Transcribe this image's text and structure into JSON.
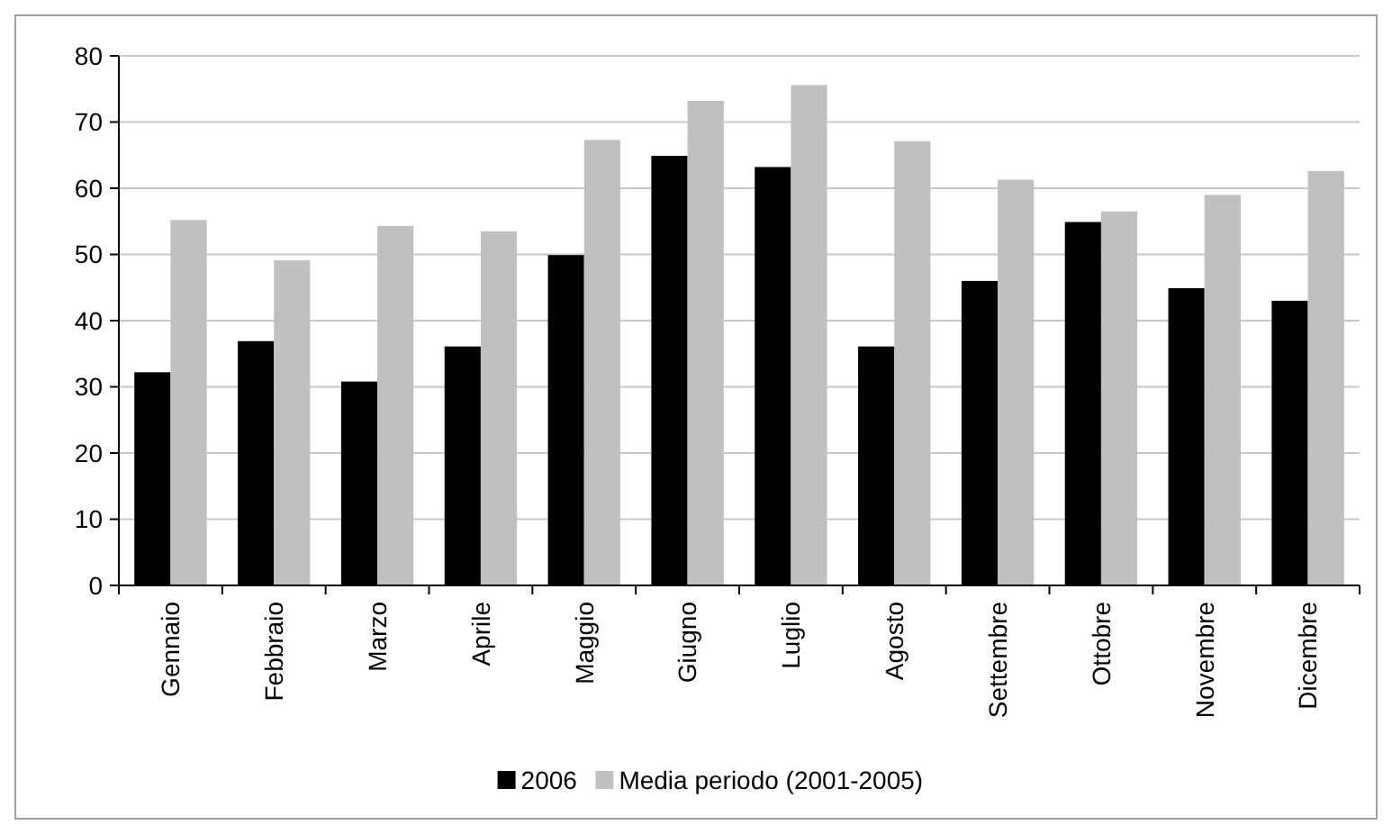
{
  "chart_data": {
    "type": "bar",
    "categories": [
      "Gennaio",
      "Febbraio",
      "Marzo",
      "Aprile",
      "Maggio",
      "Giugno",
      "Luglio",
      "Agosto",
      "Settembre",
      "Ottobre",
      "Novembre",
      "Dicembre"
    ],
    "series": [
      {
        "name": "2006",
        "color": "#000000",
        "values": [
          32.2,
          36.9,
          30.8,
          36.1,
          49.9,
          64.9,
          63.2,
          36.1,
          46.0,
          54.9,
          44.9,
          43.0
        ]
      },
      {
        "name": "Media periodo (2001-2005)",
        "color": "#c0c0c0",
        "values": [
          55.2,
          49.1,
          54.3,
          53.5,
          67.3,
          73.2,
          75.6,
          67.1,
          61.3,
          56.5,
          59.0,
          62.6
        ]
      }
    ],
    "ylim": [
      0,
      80
    ],
    "yticks": [
      0,
      10,
      20,
      30,
      40,
      50,
      60,
      70,
      80
    ],
    "grid": "y",
    "legend": "bottom"
  }
}
